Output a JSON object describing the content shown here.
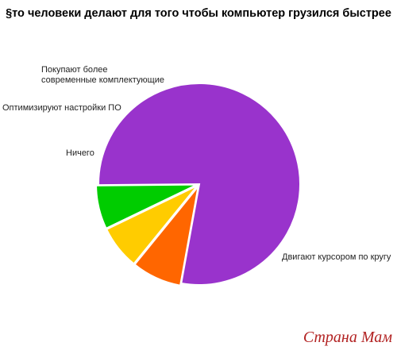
{
  "chart_data": {
    "type": "pie",
    "title": "§то человеки делают для того чтобы компьютер грузился быстрее",
    "slices": [
      {
        "label": "Ничего",
        "value": 7,
        "color": "#00cc00"
      },
      {
        "label": "Оптимизируют настройки ПО",
        "value": 7,
        "color": "#ffcc00"
      },
      {
        "label": "Покупают более\nсовременные комплектующие",
        "value": 8,
        "color": "#ff6600"
      },
      {
        "label": "Двигают курсором по кругу",
        "value": 78,
        "color": "#9933cc"
      }
    ]
  },
  "watermark": {
    "text": "Страна Мам"
  }
}
